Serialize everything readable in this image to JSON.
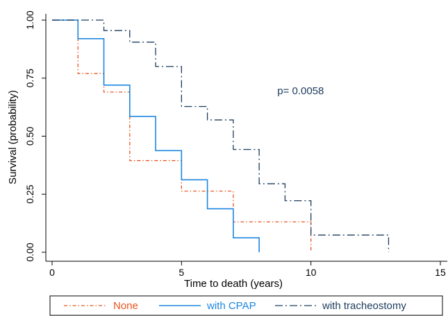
{
  "chart_data": {
    "type": "line",
    "title": "",
    "xlabel": "Time to death (years)",
    "ylabel": "Survival (probability)",
    "xlim": [
      0,
      15
    ],
    "ylim": [
      0,
      1
    ],
    "x_ticks": [
      0,
      5,
      10,
      15
    ],
    "x_tick_labels": [
      "0",
      "5",
      "10",
      "15"
    ],
    "y_ticks": [
      0,
      0.25,
      0.5,
      0.75,
      1
    ],
    "y_tick_labels": [
      "0.00",
      "0.25",
      "0.50",
      "0.75",
      "1.00"
    ],
    "grid": false,
    "legend_position": "bottom",
    "annotation": {
      "text": "p= 0.0058",
      "x": 8.7,
      "y": 0.68
    },
    "series": [
      {
        "name": "None",
        "color": "#e8541f",
        "dash": "dash-dot",
        "steps": [
          [
            0,
            1.0
          ],
          [
            1,
            0.77
          ],
          [
            2,
            0.69
          ],
          [
            3,
            0.395
          ],
          [
            5,
            0.263
          ],
          [
            7,
            0.131
          ],
          [
            10,
            0.0
          ]
        ]
      },
      {
        "name": "with CPAP",
        "color": "#1c86e0",
        "dash": "solid",
        "steps": [
          [
            0,
            1.0
          ],
          [
            1,
            0.92
          ],
          [
            2,
            0.72
          ],
          [
            3,
            0.585
          ],
          [
            4,
            0.438
          ],
          [
            5,
            0.312
          ],
          [
            6,
            0.187
          ],
          [
            7,
            0.062
          ],
          [
            8,
            0.0
          ]
        ]
      },
      {
        "name": "with tracheostomy",
        "color": "#1b3a5c",
        "dash": "long-dash-dot",
        "steps": [
          [
            0,
            1.0
          ],
          [
            2,
            0.955
          ],
          [
            3,
            0.905
          ],
          [
            4,
            0.8
          ],
          [
            5,
            0.628
          ],
          [
            6,
            0.57
          ],
          [
            7,
            0.443
          ],
          [
            8,
            0.295
          ],
          [
            9,
            0.222
          ],
          [
            10,
            0.074
          ],
          [
            13,
            0.0
          ]
        ]
      }
    ]
  }
}
